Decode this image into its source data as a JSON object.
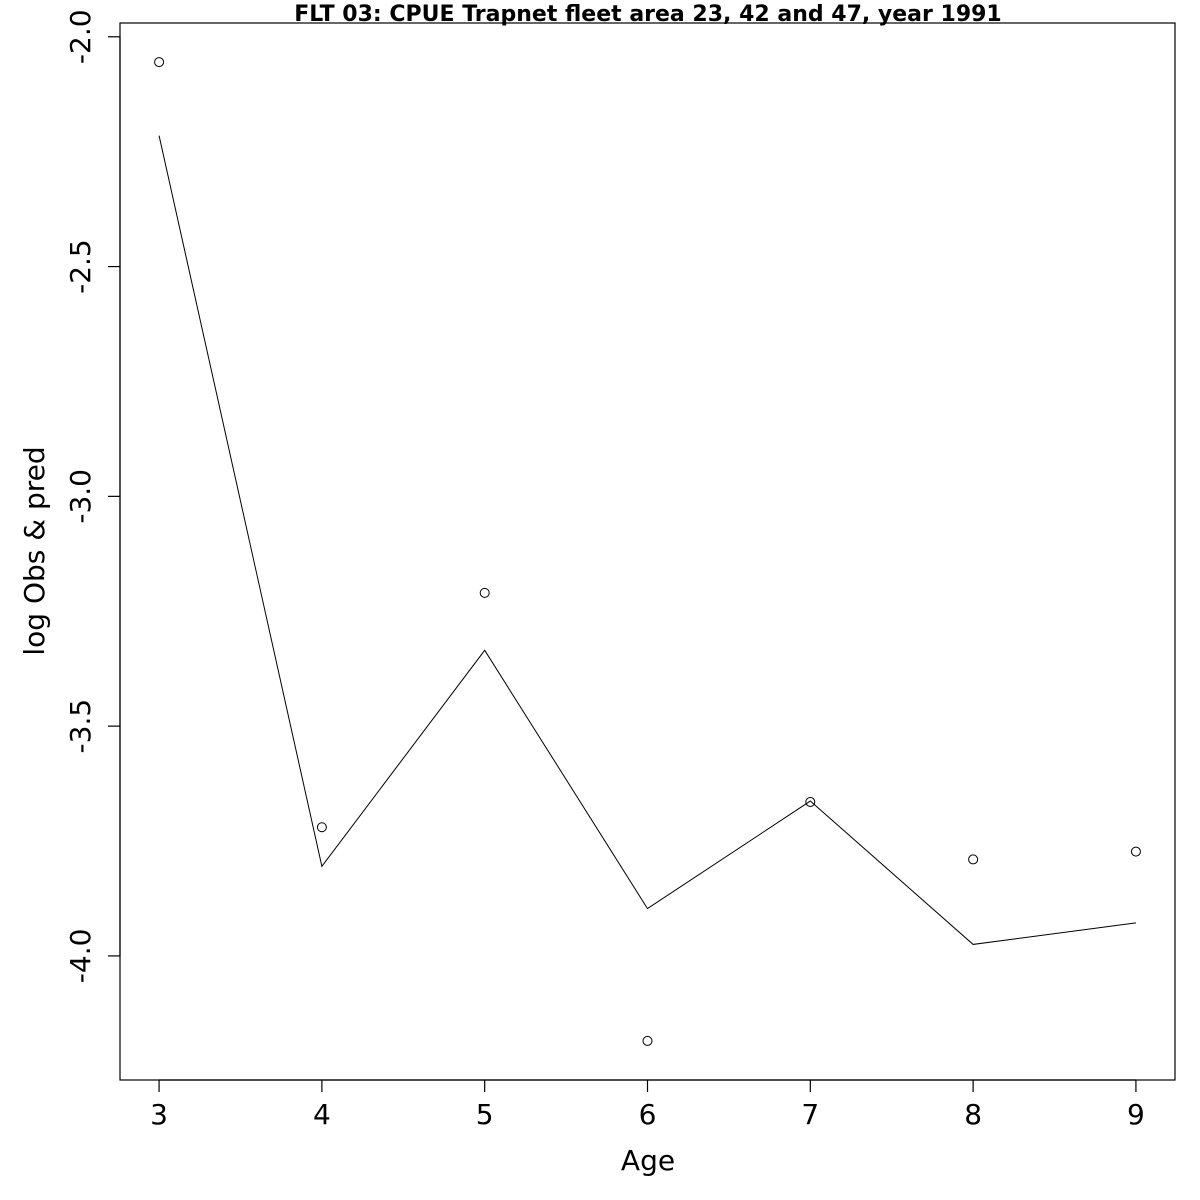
{
  "chart_data": {
    "type": "line",
    "title": "FLT 03: CPUE Trapnet fleet area 23, 42 and 47, year 1991",
    "xlabel": "Age",
    "ylabel": "log Obs & pred",
    "x": [
      3,
      4,
      5,
      6,
      7,
      8,
      9
    ],
    "xticks": [
      "3",
      "4",
      "5",
      "6",
      "7",
      "8",
      "9"
    ],
    "yticks": [
      "-2.0",
      "-2.5",
      "-3.0",
      "-3.5",
      "-4.0"
    ],
    "ytick_values": [
      -2.0,
      -2.5,
      -3.0,
      -3.5,
      -4.0
    ],
    "xlim": [
      2.76,
      9.24
    ],
    "ylim": [
      -4.27,
      -1.97
    ],
    "series": [
      {
        "role": "observed",
        "style": "points",
        "values": [
          -2.055,
          -3.72,
          -3.21,
          -4.185,
          -3.665,
          -3.79,
          -3.773
        ]
      },
      {
        "role": "predicted",
        "style": "line",
        "values": [
          -2.215,
          -3.805,
          -3.335,
          -3.897,
          -3.663,
          -3.975,
          -3.928
        ]
      }
    ],
    "grid": false,
    "colors": {
      "line": "#000000",
      "points": "#000000",
      "frame": "#000000"
    }
  }
}
